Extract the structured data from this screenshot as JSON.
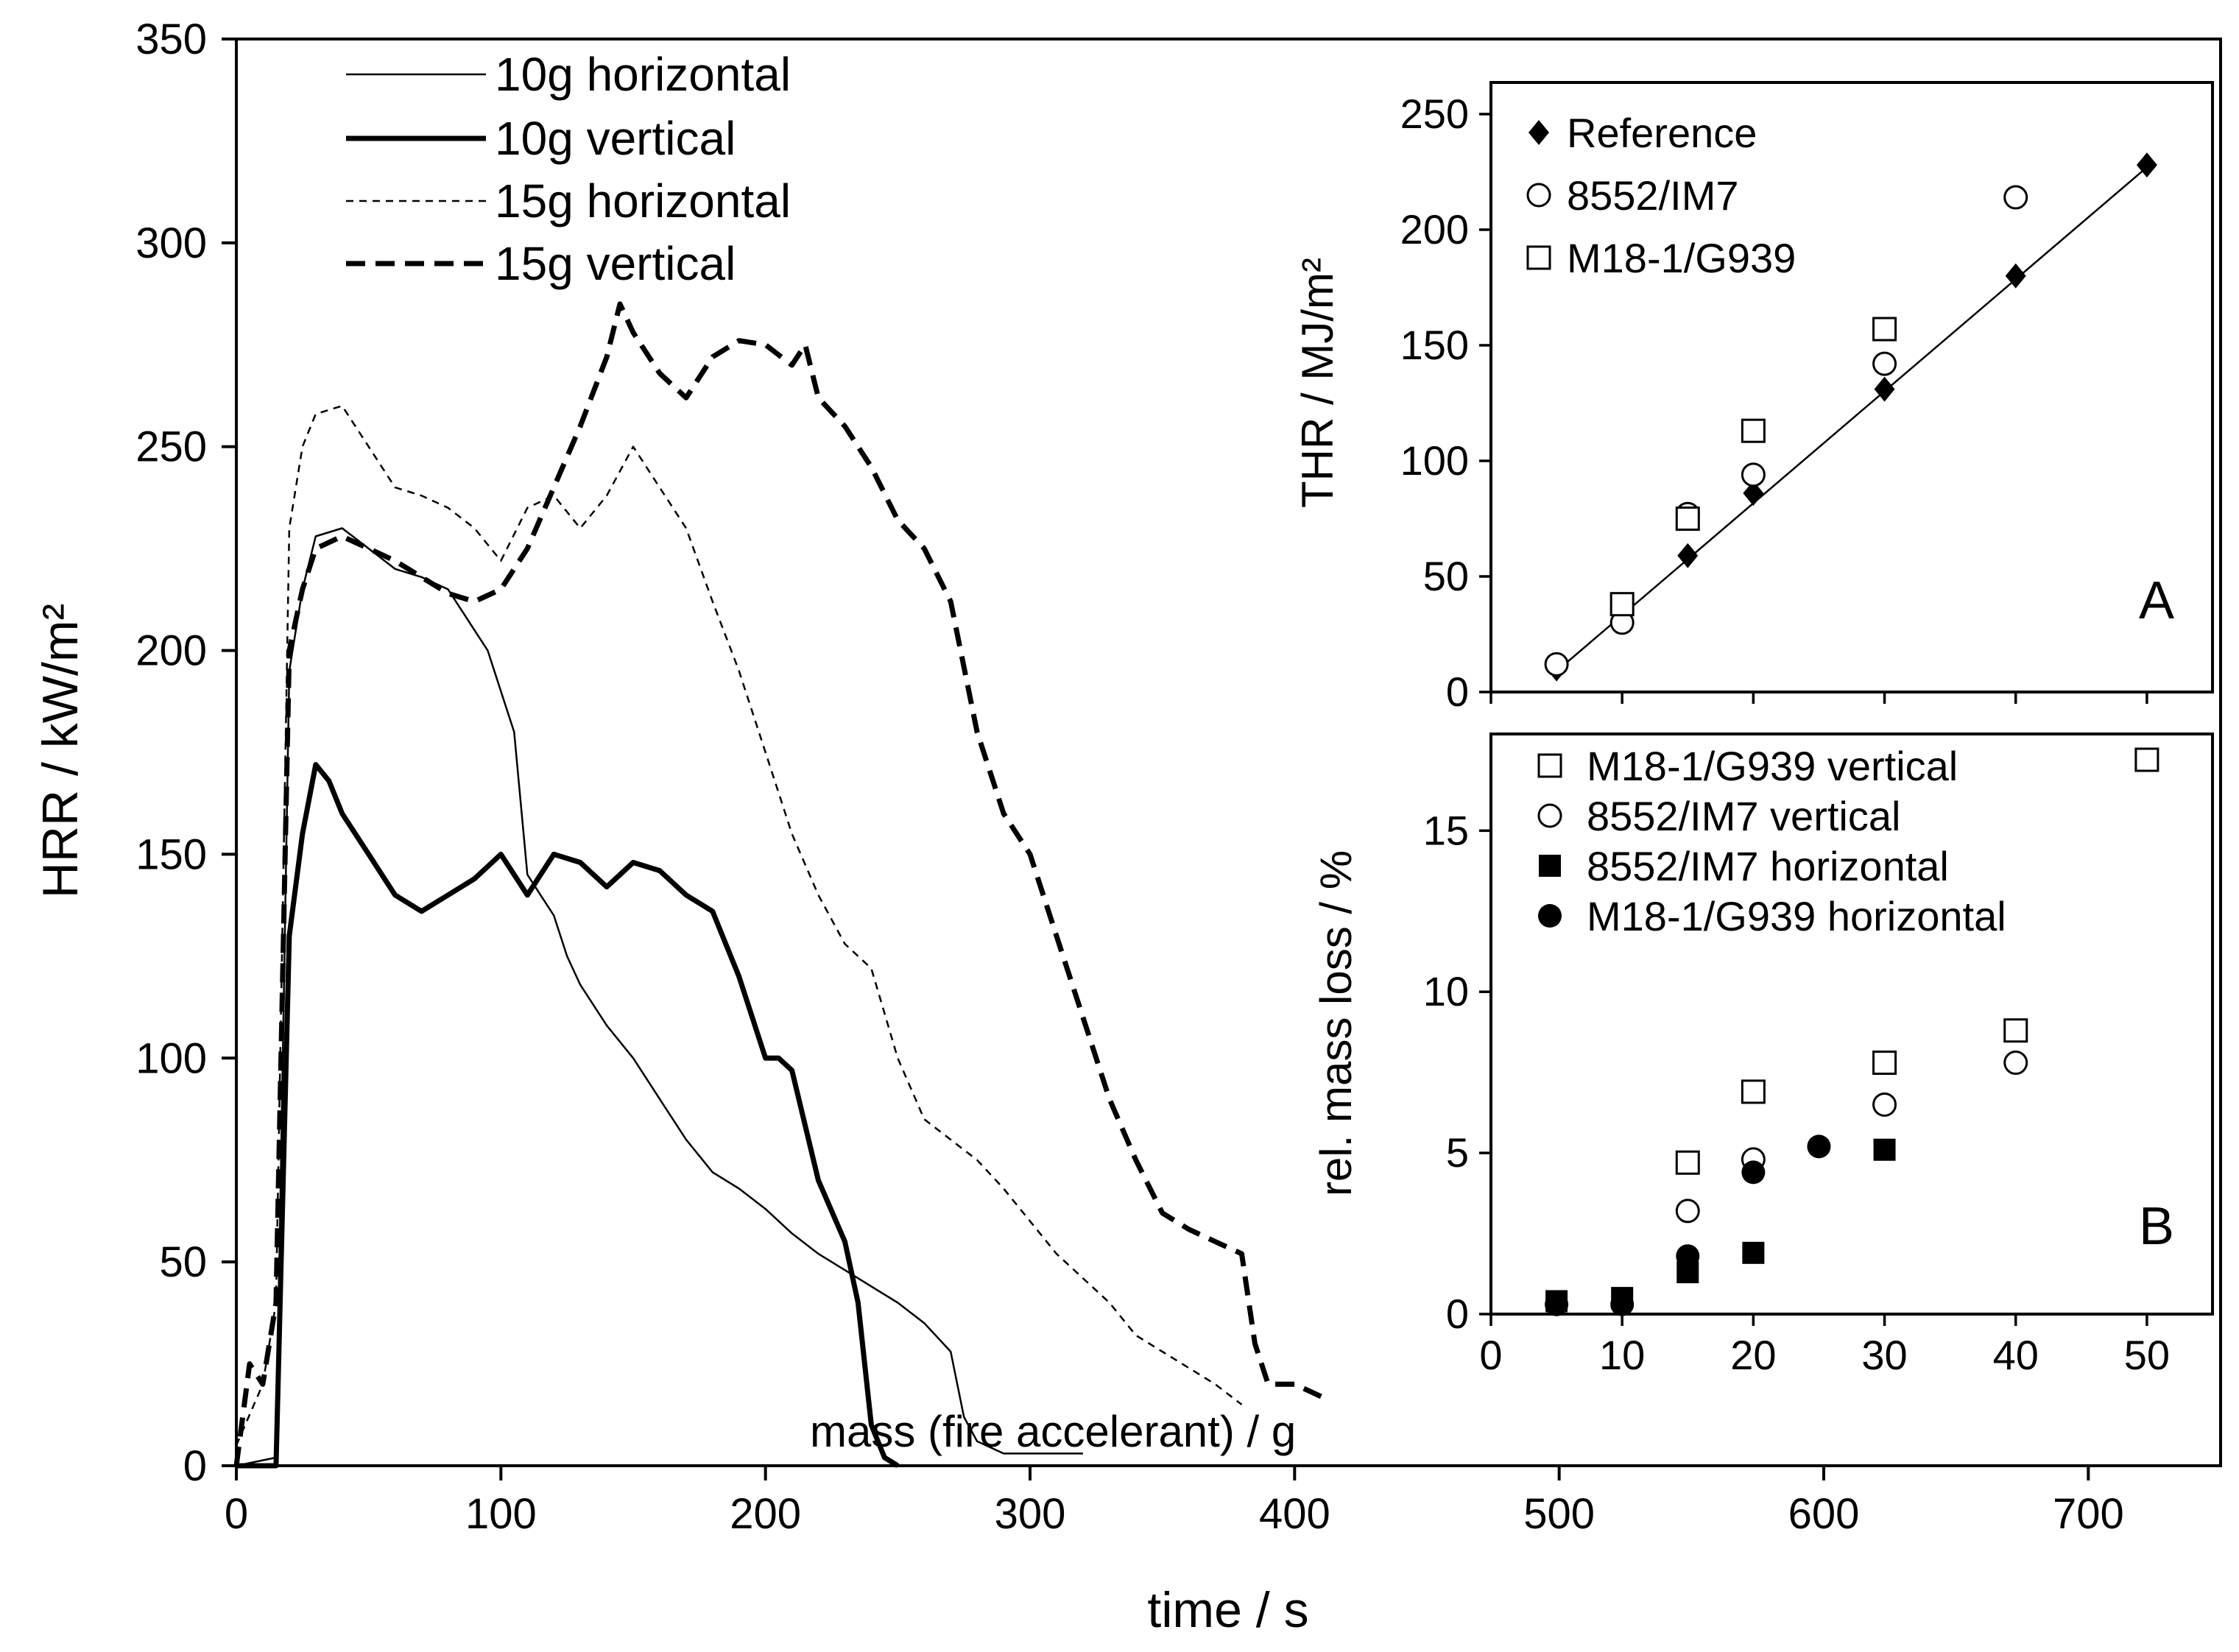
{
  "chart_data": [
    {
      "type": "line",
      "xlabel": "time / s",
      "ylabel": "HRR / kW/m²",
      "xlim": [
        0,
        750
      ],
      "ylim": [
        0,
        350
      ],
      "xticks": [
        "0",
        "100",
        "200",
        "300",
        "400",
        "500",
        "600",
        "700"
      ],
      "yticks": [
        "0",
        "50",
        "100",
        "150",
        "200",
        "250",
        "300",
        "350"
      ],
      "grid": false,
      "legend_position": "top-left",
      "series": [
        {
          "name": "10g horizontal",
          "style": "thin-solid",
          "x": [
            0,
            15,
            20,
            25,
            30,
            40,
            50,
            60,
            70,
            80,
            85,
            90,
            95,
            100,
            105,
            110,
            115,
            120,
            125,
            130,
            140,
            150,
            160,
            170,
            180,
            190,
            200,
            210,
            220,
            230,
            240,
            250,
            260,
            270,
            275,
            280,
            290,
            300,
            310,
            320
          ],
          "y": [
            0,
            2,
            195,
            215,
            228,
            230,
            225,
            220,
            218,
            215,
            210,
            205,
            200,
            190,
            180,
            145,
            140,
            135,
            125,
            118,
            108,
            100,
            90,
            80,
            72,
            68,
            63,
            57,
            52,
            48,
            44,
            40,
            35,
            28,
            12,
            6,
            3,
            3,
            3,
            3
          ]
        },
        {
          "name": "10g vertical",
          "style": "thick-solid",
          "x": [
            0,
            15,
            20,
            25,
            30,
            35,
            40,
            50,
            60,
            70,
            80,
            90,
            100,
            110,
            120,
            130,
            140,
            150,
            160,
            170,
            180,
            190,
            200,
            205,
            210,
            220,
            230,
            235,
            240,
            245,
            250
          ],
          "y": [
            0,
            0,
            130,
            155,
            172,
            168,
            160,
            150,
            140,
            136,
            140,
            144,
            150,
            140,
            150,
            148,
            142,
            148,
            146,
            140,
            136,
            120,
            100,
            100,
            97,
            70,
            55,
            40,
            10,
            2,
            0
          ],
          "legend_only_note": ""
        },
        {
          "name": "15g horizontal",
          "style": "thin-dashed",
          "x": [
            0,
            10,
            15,
            20,
            25,
            30,
            40,
            50,
            60,
            70,
            80,
            90,
            100,
            110,
            120,
            130,
            140,
            150,
            160,
            170,
            180,
            190,
            200,
            210,
            220,
            230,
            240,
            250,
            260,
            270,
            280,
            290,
            300,
            310,
            320,
            330,
            340,
            350,
            360,
            370,
            380
          ],
          "y": [
            5,
            20,
            40,
            230,
            250,
            258,
            260,
            250,
            240,
            238,
            235,
            230,
            222,
            235,
            238,
            230,
            238,
            250,
            240,
            230,
            212,
            195,
            175,
            155,
            140,
            128,
            122,
            100,
            85,
            80,
            75,
            68,
            60,
            52,
            46,
            40,
            32,
            28,
            24,
            20,
            15
          ]
        },
        {
          "name": "15g vertical",
          "style": "thick-dashed",
          "x": [
            0,
            5,
            10,
            15,
            20,
            25,
            30,
            40,
            50,
            60,
            70,
            80,
            90,
            100,
            110,
            120,
            130,
            140,
            145,
            150,
            160,
            170,
            180,
            190,
            200,
            210,
            215,
            220,
            230,
            240,
            250,
            260,
            270,
            280,
            290,
            300,
            310,
            320,
            330,
            340,
            350,
            360,
            370,
            380,
            385,
            390,
            400,
            410
          ],
          "y": [
            0,
            25,
            20,
            40,
            200,
            215,
            225,
            228,
            225,
            222,
            218,
            214,
            212,
            215,
            225,
            240,
            255,
            272,
            285,
            278,
            268,
            262,
            272,
            276,
            275,
            270,
            275,
            262,
            255,
            245,
            232,
            225,
            212,
            180,
            160,
            150,
            130,
            110,
            90,
            75,
            62,
            58,
            55,
            52,
            30,
            20,
            20,
            17
          ]
        }
      ]
    },
    {
      "type": "scatter",
      "panel_label": "A",
      "xlabel": "",
      "ylabel": "THR / MJ/m²",
      "xlim": [
        0,
        55
      ],
      "ylim": [
        0,
        250
      ],
      "yticks": [
        "0",
        "50",
        "100",
        "150",
        "200",
        "250"
      ],
      "legend_position": "top-left",
      "series": [
        {
          "name": "Reference",
          "marker": "filled-diamond",
          "x": [
            5,
            10,
            15,
            20,
            30,
            40,
            50
          ],
          "y": [
            10,
            33,
            59,
            86,
            131,
            180,
            228
          ]
        },
        {
          "name": "8552/IM7",
          "marker": "open-circle",
          "x": [
            5,
            10,
            15,
            20,
            30,
            40
          ],
          "y": [
            12,
            30,
            77,
            94,
            142,
            214
          ]
        },
        {
          "name": "M18-1/G939",
          "marker": "open-square",
          "x": [
            10,
            15,
            20,
            30
          ],
          "y": [
            38,
            75,
            113,
            157
          ]
        }
      ],
      "fit_line": {
        "x": [
          5,
          50
        ],
        "y": [
          9,
          227
        ]
      }
    },
    {
      "type": "scatter",
      "panel_label": "B",
      "xlabel": "mass (fire accelerant) / g",
      "ylabel": "rel. mass loss / %",
      "xlim": [
        0,
        55
      ],
      "ylim": [
        0,
        18
      ],
      "xticks": [
        "0",
        "10",
        "20",
        "30",
        "40",
        "50"
      ],
      "yticks": [
        "0",
        "5",
        "10",
        "15"
      ],
      "legend_position": "top-left",
      "series": [
        {
          "name": "M18-1/G939 vertical",
          "marker": "open-square",
          "x": [
            15,
            20,
            30,
            40,
            50
          ],
          "y": [
            4.7,
            6.9,
            7.8,
            8.8,
            17.2
          ]
        },
        {
          "name": "8552/IM7 vertical",
          "marker": "open-circle",
          "x": [
            15,
            20,
            30,
            40
          ],
          "y": [
            3.2,
            4.8,
            6.5,
            7.8
          ]
        },
        {
          "name": "8552/IM7 horizontal",
          "marker": "filled-square",
          "x": [
            5,
            10,
            15,
            20,
            30
          ],
          "y": [
            0.4,
            0.5,
            1.3,
            1.9,
            5.1
          ]
        },
        {
          "name": "M18-1/G939 horizontal",
          "marker": "filled-circle",
          "x": [
            5,
            10,
            15,
            20,
            25
          ],
          "y": [
            0.3,
            0.3,
            1.8,
            4.4,
            5.2
          ]
        }
      ]
    }
  ]
}
